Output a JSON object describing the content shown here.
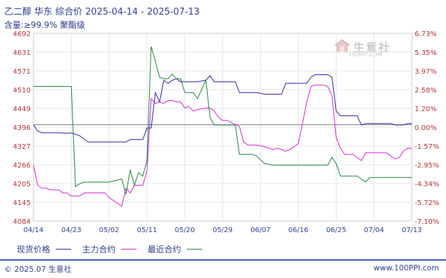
{
  "header": {
    "title": "乙二醇 华东 综合价 2025-04-14 - 2025-07-13",
    "subtitle": "含量:≥99.9% 聚酯级"
  },
  "watermark": {
    "brand": "生意社",
    "url": "100PPI.COM"
  },
  "legend": [
    {
      "label": "现货价格",
      "color": "#1a1aa6"
    },
    {
      "label": "主力合约",
      "color": "#d31ad3"
    },
    {
      "label": "最近合约",
      "color": "#1a7a3a"
    }
  ],
  "footer": {
    "left": "© 2025.07 生意社",
    "right": "www.100PPI.com"
  },
  "chart_data": {
    "type": "line",
    "title": "乙二醇 华东 综合价 2025-04-14 - 2025-07-13",
    "subtitle": "含量:≥99.9% 聚酯级",
    "ylim": [
      4084,
      4692
    ],
    "y_ticks": [
      "4692",
      "4631",
      "4571",
      "4510",
      "4449",
      "4396",
      "4327",
      "4266",
      "4205",
      "4145",
      "4084"
    ],
    "y2_ticks": [
      "6.73%",
      "5.35%",
      "3.97%",
      "2.58%",
      "1.20%",
      "0.00%",
      "-1.57%",
      "-2.95%",
      "-4.34%",
      "-5.72%",
      "-7.10%"
    ],
    "x_ticks": [
      "04/14",
      "04/23",
      "05/02",
      "05/11",
      "05/20",
      "05/29",
      "06/07",
      "06/16",
      "06/25",
      "07/04",
      "07/13"
    ],
    "x_range": [
      "04/14",
      "07/13"
    ],
    "baseline": 4396,
    "grid": true,
    "legend_position": "bottom",
    "series": [
      {
        "name": "现货价格",
        "color": "#1a1aa6",
        "x": [
          "04/14",
          "04/15",
          "04/16",
          "04/18",
          "04/20",
          "04/22",
          "04/23",
          "04/24",
          "04/25",
          "04/27",
          "04/28",
          "04/29",
          "04/30",
          "05/01",
          "05/06",
          "05/07",
          "05/08",
          "05/09",
          "05/10",
          "05/11",
          "05/12",
          "05/13",
          "05/14",
          "05/15",
          "05/16",
          "05/17",
          "05/18",
          "05/19",
          "05/20",
          "05/21",
          "05/22",
          "05/23",
          "05/25",
          "05/26",
          "05/27",
          "05/28",
          "05/29",
          "05/30",
          "06/01",
          "06/02",
          "06/03",
          "06/04",
          "06/05",
          "06/06",
          "06/08",
          "06/10",
          "06/11",
          "06/12",
          "06/13",
          "06/14",
          "06/16",
          "06/17",
          "06/18",
          "06/19",
          "06/20",
          "06/22",
          "06/23",
          "06/24",
          "06/25",
          "06/26",
          "06/27",
          "06/29",
          "06/30",
          "07/01",
          "07/02",
          "07/04",
          "07/06",
          "07/07",
          "07/08",
          "07/09",
          "07/10",
          "07/11",
          "07/12",
          "07/13"
        ],
        "y": [
          4396,
          4375,
          4370,
          4370,
          4370,
          4368,
          4370,
          4365,
          4360,
          4340,
          4340,
          4340,
          4340,
          4340,
          4340,
          4348,
          4348,
          4348,
          4348,
          4385,
          4385,
          4500,
          4470,
          4540,
          4530,
          4540,
          4545,
          4535,
          4535,
          4535,
          4535,
          4535,
          4540,
          4555,
          4535,
          4535,
          4535,
          4535,
          4535,
          4500,
          4500,
          4500,
          4500,
          4500,
          4495,
          4495,
          4495,
          4495,
          4530,
          4530,
          4530,
          4530,
          4530,
          4550,
          4558,
          4558,
          4558,
          4550,
          4440,
          4425,
          4425,
          4425,
          4425,
          4395,
          4400,
          4400,
          4400,
          4400,
          4400,
          4395,
          4395,
          4395,
          4400,
          4400
        ]
      },
      {
        "name": "主力合约",
        "color": "#d31ad3",
        "x": [
          "04/14",
          "04/15",
          "04/16",
          "04/17",
          "04/18",
          "04/20",
          "04/21",
          "04/22",
          "04/23",
          "04/24",
          "04/25",
          "04/26",
          "04/27",
          "04/28",
          "04/29",
          "04/30",
          "05/01",
          "05/02",
          "05/05",
          "05/06",
          "05/07",
          "05/08",
          "05/09",
          "05/10",
          "05/11",
          "05/12",
          "05/13",
          "05/14",
          "05/15",
          "05/16",
          "05/17",
          "05/18",
          "05/19",
          "05/20",
          "05/21",
          "05/22",
          "05/23",
          "05/25",
          "05/26",
          "05/27",
          "05/28",
          "05/29",
          "05/30",
          "06/02",
          "06/03",
          "06/04",
          "06/05",
          "06/06",
          "06/08",
          "06/10",
          "06/11",
          "06/12",
          "06/13",
          "06/14",
          "06/16",
          "06/17",
          "06/18",
          "06/19",
          "06/20",
          "06/22",
          "06/23",
          "06/24",
          "06/25",
          "06/26",
          "06/27",
          "06/29",
          "06/30",
          "07/01",
          "07/02",
          "07/04",
          "07/06",
          "07/07",
          "07/08",
          "07/09",
          "07/10",
          "07/11",
          "07/12",
          "07/13"
        ],
        "y": [
          4266,
          4200,
          4190,
          4190,
          4185,
          4185,
          4175,
          4175,
          4165,
          4165,
          4165,
          4175,
          4175,
          4175,
          4175,
          4175,
          4175,
          4160,
          4132,
          4190,
          4175,
          4200,
          4200,
          4200,
          4245,
          4480,
          4465,
          4470,
          4465,
          4475,
          4475,
          4470,
          4470,
          4450,
          4455,
          4440,
          4445,
          4450,
          4450,
          4440,
          4420,
          4410,
          4410,
          4390,
          4340,
          4330,
          4330,
          4330,
          4325,
          4315,
          4320,
          4315,
          4310,
          4315,
          4335,
          4400,
          4470,
          4520,
          4525,
          4525,
          4520,
          4490,
          4355,
          4320,
          4300,
          4300,
          4290,
          4280,
          4305,
          4305,
          4305,
          4305,
          4295,
          4285,
          4290,
          4310,
          4320,
          4320
        ]
      },
      {
        "name": "最近合约",
        "color": "#1a7a3a",
        "x": [
          "04/14",
          "04/20",
          "04/23",
          "04/24",
          "04/25",
          "04/26",
          "04/27",
          "04/28",
          "04/29",
          "04/30",
          "05/01",
          "05/02",
          "05/05",
          "05/06",
          "05/07",
          "05/08",
          "05/09",
          "05/10",
          "05/11",
          "05/12",
          "05/13",
          "05/14",
          "05/15",
          "05/16",
          "05/17",
          "05/18",
          "05/19",
          "05/20",
          "05/21",
          "05/22",
          "05/23",
          "05/25",
          "05/26",
          "05/27",
          "05/28",
          "05/29",
          "05/30",
          "06/01",
          "06/02",
          "06/03",
          "06/04",
          "06/05",
          "06/06",
          "06/08",
          "06/10",
          "06/12",
          "06/14",
          "06/16",
          "06/18",
          "06/20",
          "06/22",
          "06/23",
          "06/24",
          "06/25",
          "06/26",
          "06/27",
          "06/29",
          "06/30",
          "07/01",
          "07/02",
          "07/03",
          "07/04",
          "07/06",
          "07/08",
          "07/10",
          "07/12",
          "07/13"
        ],
        "y": [
          4520,
          4520,
          4520,
          4195,
          4205,
          4210,
          4210,
          4210,
          4210,
          4210,
          4210,
          4210,
          4220,
          4170,
          4250,
          4200,
          4240,
          4230,
          4280,
          4650,
          4600,
          4550,
          4545,
          4545,
          4560,
          4545,
          4545,
          4500,
          4500,
          4500,
          4480,
          4540,
          4420,
          4395,
          4395,
          4395,
          4395,
          4395,
          4300,
          4300,
          4300,
          4300,
          4295,
          4270,
          4265,
          4265,
          4265,
          4265,
          4265,
          4265,
          4265,
          4265,
          4290,
          4270,
          4230,
          4230,
          4230,
          4230,
          4220,
          4210,
          4225,
          4225,
          4225,
          4225,
          4225,
          4225,
          4225
        ]
      }
    ]
  }
}
